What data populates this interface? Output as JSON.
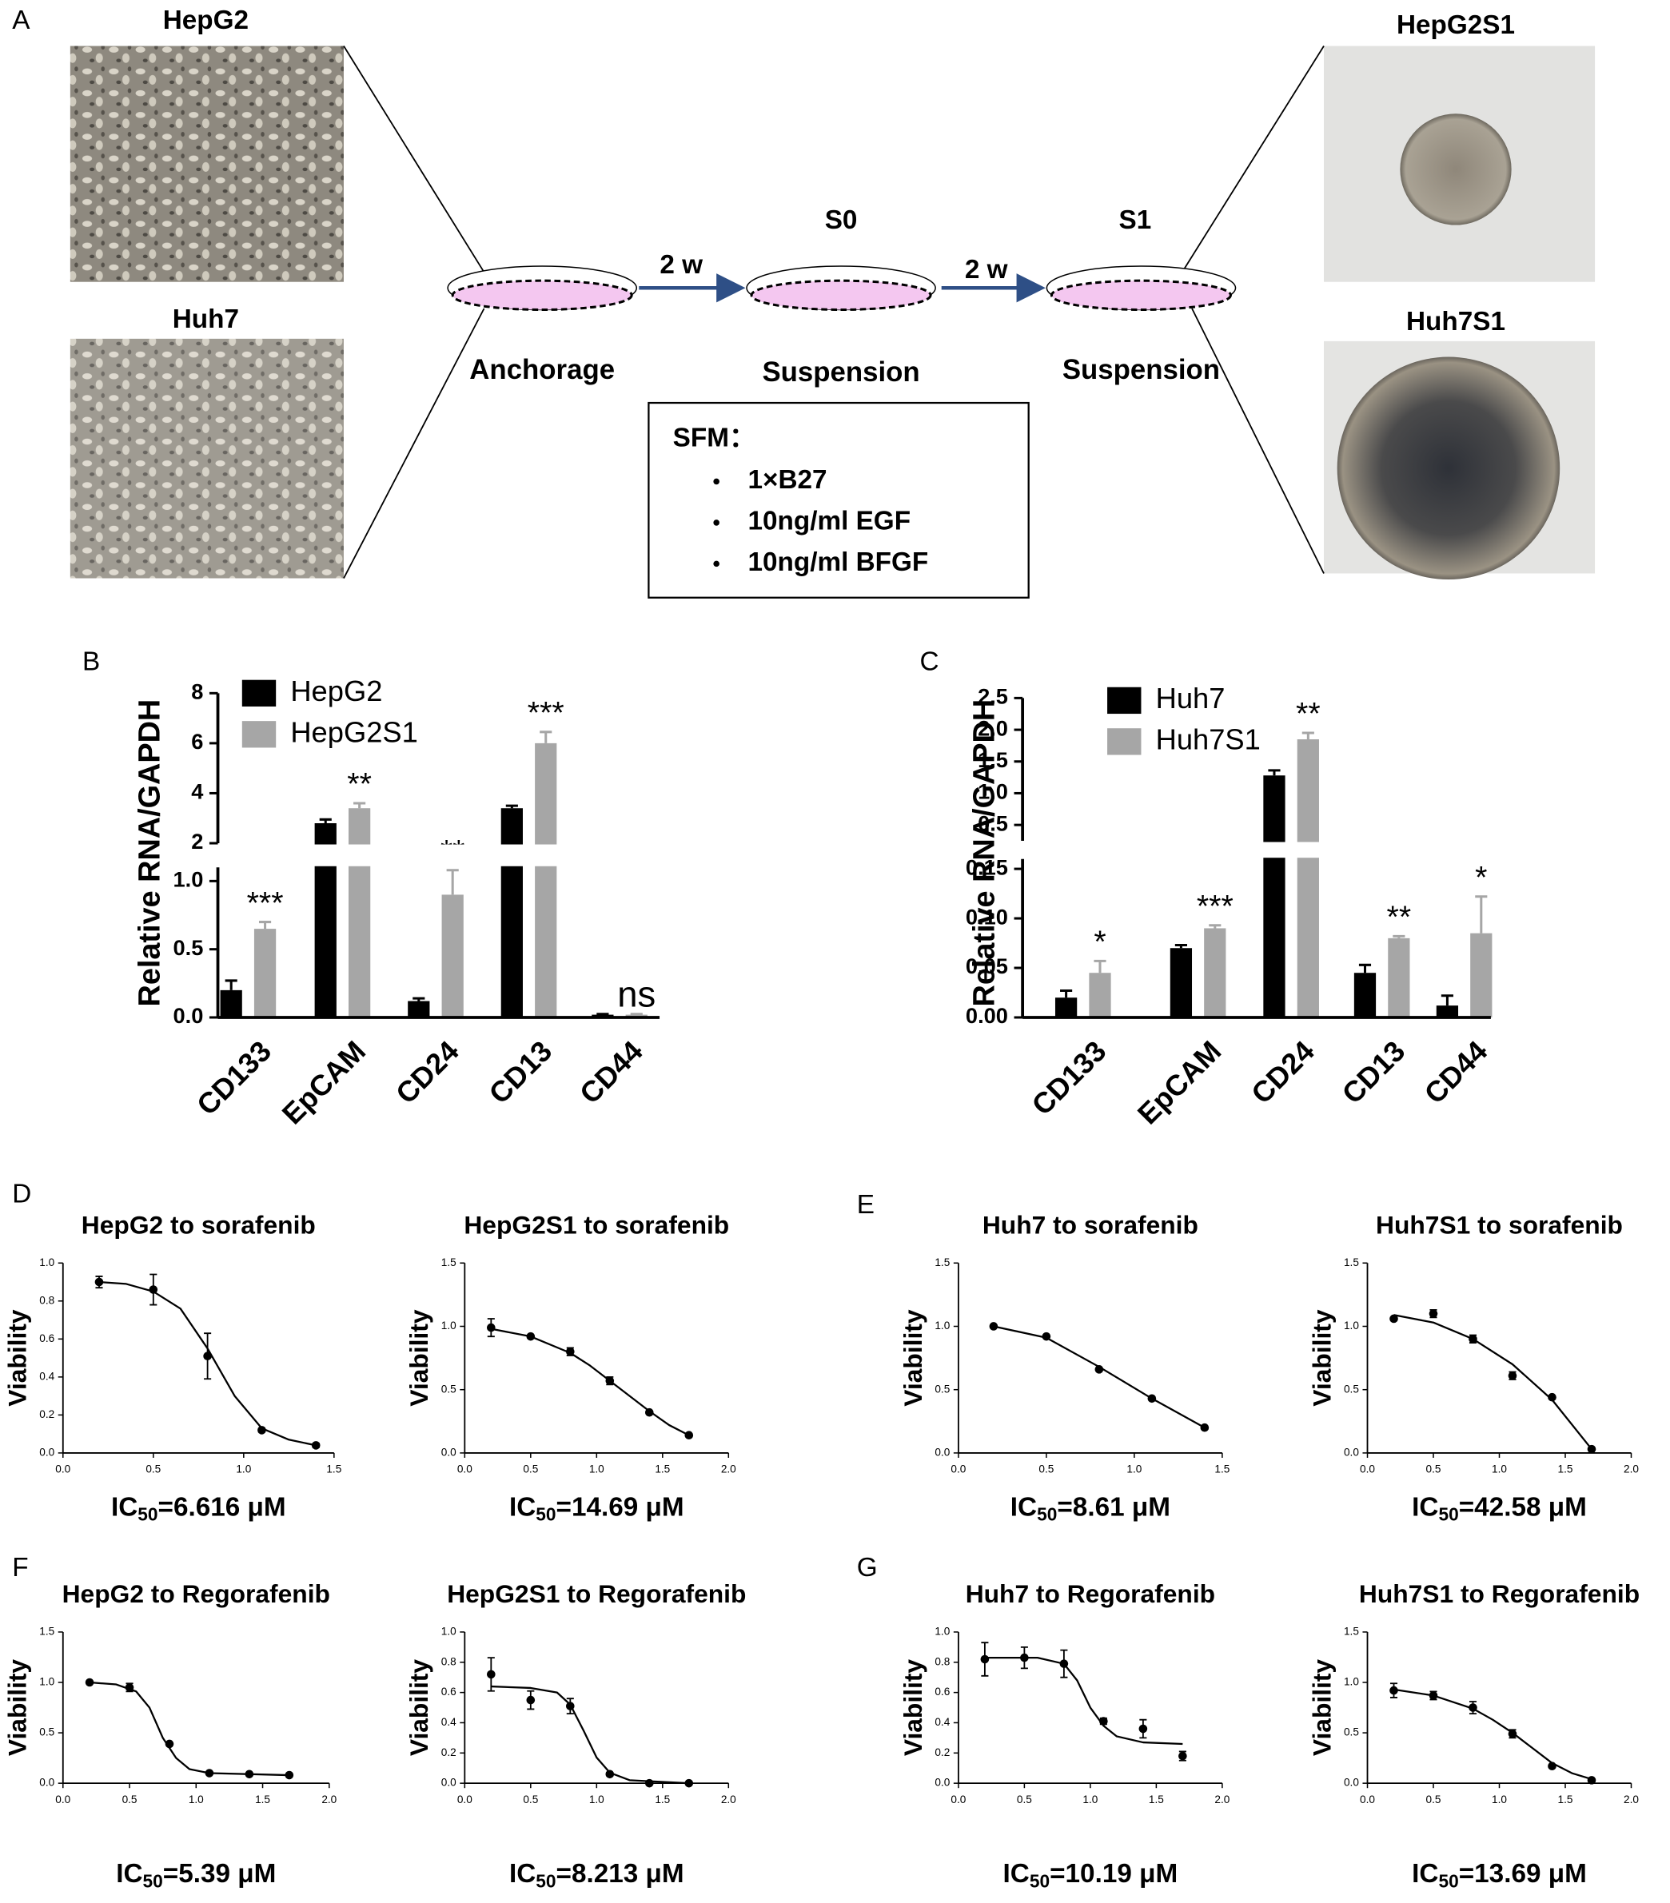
{
  "panel_labels": [
    "A",
    "B",
    "C",
    "D",
    "E",
    "F",
    "G"
  ],
  "diagram": {
    "image_labels": [
      "HepG2",
      "Huh7",
      "HepG2S1",
      "Huh7S1"
    ],
    "durations": [
      "2 w",
      "2 w"
    ],
    "stages": [
      "S0",
      "S1"
    ],
    "conditions": [
      "Anchorage",
      "Suspension",
      "Suspension"
    ],
    "medium": {
      "title": "SFM：",
      "items": [
        "1×B27",
        "10ng/ml EGF",
        "10ng/ml BFGF"
      ]
    }
  },
  "chart_data": [
    {
      "type": "bar",
      "ylabel": "Relative RNA/GAPDH",
      "categories": [
        "CD133",
        "EpCAM",
        "CD24",
        "CD13",
        "CD44"
      ],
      "series": [
        {
          "name": "HepG2",
          "color": "#000000",
          "values": [
            0.2,
            2.8,
            0.12,
            3.4,
            0.02
          ],
          "errors": [
            0.07,
            0.15,
            0.02,
            0.1,
            0.005
          ]
        },
        {
          "name": "HepG2S1",
          "color": "#a6a6a6",
          "values": [
            0.65,
            3.4,
            0.9,
            6,
            0.02
          ],
          "errors": [
            0.05,
            0.2,
            0.18,
            0.45,
            0.005
          ]
        }
      ],
      "annotations": [
        "***",
        "**",
        "**",
        "***",
        "ns"
      ],
      "ylim_lower": [
        0,
        1.1
      ],
      "ylim_upper": [
        2,
        8
      ],
      "yticks": [
        {
          "value": 0,
          "label": "0.0"
        },
        0.5,
        {
          "value": 1,
          "label": "1.0"
        },
        2,
        4,
        6,
        8
      ]
    },
    {
      "type": "bar",
      "ylabel": "Relative RNA/GAPDH",
      "categories": [
        "CD133",
        "EpCAM",
        "CD24",
        "CD13",
        "CD44"
      ],
      "series": [
        {
          "name": "Huh7",
          "color": "#000000",
          "values": [
            0.02,
            0.07,
            1.28,
            0.045,
            0.012
          ],
          "errors": [
            0.007,
            0.003,
            0.08,
            0.008,
            0.01
          ]
        },
        {
          "name": "Huh7S1",
          "color": "#a6a6a6",
          "values": [
            0.045,
            0.09,
            1.85,
            0.08,
            0.085
          ],
          "errors": [
            0.012,
            0.003,
            0.1,
            0.002,
            0.037
          ]
        }
      ],
      "annotations": [
        "*",
        "***",
        "**",
        "**",
        "*"
      ],
      "ylim_lower": [
        0,
        0.16
      ],
      "ylim_upper": [
        0.25,
        2.5
      ],
      "yticks": [
        {
          "value": 0,
          "label": "0.00"
        },
        0.05,
        {
          "value": 0.1,
          "label": "0.10"
        },
        0.15,
        0.5,
        {
          "value": 1,
          "label": "1.0"
        },
        1.5,
        {
          "value": 2,
          "label": "2.0"
        },
        2.5
      ]
    },
    {
      "type": "dose",
      "title": "HepG2 to sorafenib",
      "ylabel": "Viability",
      "xlabel": {
        "prefix": "IC",
        "sub": "50",
        "text": "=6.616 μM"
      },
      "x": [
        0.2,
        0.5,
        0.8,
        1.1,
        1.4
      ],
      "values": [
        0.9,
        0.86,
        0.51,
        0.12,
        0.04
      ],
      "errors": [
        0.03,
        0.08,
        0.12,
        0.01,
        0.01
      ],
      "fit": {
        "x": [
          0.2,
          0.35,
          0.5,
          0.65,
          0.8,
          0.95,
          1.1,
          1.25,
          1.4
        ],
        "y": [
          0.9,
          0.89,
          0.85,
          0.76,
          0.55,
          0.3,
          0.13,
          0.07,
          0.04
        ]
      },
      "xlim": [
        0,
        1.5
      ],
      "ylim": [
        0,
        1
      ],
      "xticks": [
        {
          "value": 0,
          "label": "0.0"
        },
        0.5,
        {
          "value": 1,
          "label": "1.0"
        },
        1.5
      ],
      "yticks": [
        {
          "value": 0,
          "label": "0.0"
        },
        0.2,
        0.4,
        0.6,
        0.8,
        {
          "value": 1,
          "label": "1.0"
        }
      ]
    },
    {
      "type": "dose",
      "title": "HepG2S1 to sorafenib",
      "ylabel": "Viability",
      "xlabel": {
        "prefix": "IC",
        "sub": "50",
        "text": "=14.69 μM"
      },
      "x": [
        0.2,
        0.5,
        0.8,
        1.1,
        1.4,
        1.7
      ],
      "values": [
        0.99,
        0.92,
        0.8,
        0.57,
        0.32,
        0.14
      ],
      "errors": [
        0.07,
        0.01,
        0.03,
        0.03,
        0.01,
        0.01
      ],
      "fit": {
        "x": [
          0.2,
          0.5,
          0.8,
          0.95,
          1.1,
          1.25,
          1.4,
          1.55,
          1.7
        ],
        "y": [
          0.98,
          0.92,
          0.79,
          0.69,
          0.57,
          0.45,
          0.33,
          0.22,
          0.14
        ]
      },
      "xlim": [
        0,
        2
      ],
      "ylim": [
        0,
        1.5
      ],
      "xticks": [
        {
          "value": 0,
          "label": "0.0"
        },
        0.5,
        {
          "value": 1,
          "label": "1.0"
        },
        1.5,
        {
          "value": 2,
          "label": "2.0"
        }
      ],
      "yticks": [
        {
          "value": 0,
          "label": "0.0"
        },
        0.5,
        {
          "value": 1,
          "label": "1.0"
        },
        1.5
      ]
    },
    {
      "type": "dose",
      "title": "Huh7 to sorafenib",
      "ylabel": "Viability",
      "xlabel": {
        "prefix": "IC",
        "sub": "50",
        "text": "=8.61 μM"
      },
      "x": [
        0.2,
        0.5,
        0.8,
        1.1,
        1.4
      ],
      "values": [
        1,
        0.92,
        0.66,
        0.43,
        0.2
      ],
      "errors": [
        0.01,
        0.01,
        0.01,
        0.01,
        0.01
      ],
      "fit": {
        "x": [
          0.2,
          0.5,
          0.8,
          1.1,
          1.4
        ],
        "y": [
          1,
          0.91,
          0.68,
          0.43,
          0.2
        ]
      },
      "xlim": [
        0,
        1.5
      ],
      "ylim": [
        0,
        1.5
      ],
      "xticks": [
        {
          "value": 0,
          "label": "0.0"
        },
        0.5,
        {
          "value": 1,
          "label": "1.0"
        },
        1.5
      ],
      "yticks": [
        {
          "value": 0,
          "label": "0.0"
        },
        0.5,
        {
          "value": 1,
          "label": "1.0"
        },
        1.5
      ]
    },
    {
      "type": "dose",
      "title": "Huh7S1 to sorafenib",
      "ylabel": "Viability",
      "xlabel": {
        "prefix": "IC",
        "sub": "50",
        "text": "=42.58 μM"
      },
      "x": [
        0.2,
        0.5,
        0.8,
        1.1,
        1.4,
        1.7
      ],
      "values": [
        1.06,
        1.1,
        0.9,
        0.61,
        0.44,
        0.03
      ],
      "errors": [
        0.01,
        0.03,
        0.03,
        0.03,
        0.01,
        0.01
      ],
      "fit": {
        "x": [
          0.2,
          0.5,
          0.8,
          1.1,
          1.4,
          1.7
        ],
        "y": [
          1.09,
          1.03,
          0.9,
          0.7,
          0.42,
          0.03
        ]
      },
      "xlim": [
        0,
        2
      ],
      "ylim": [
        0,
        1.5
      ],
      "xticks": [
        {
          "value": 0,
          "label": "0.0"
        },
        0.5,
        {
          "value": 1,
          "label": "1.0"
        },
        1.5,
        {
          "value": 2,
          "label": "2.0"
        }
      ],
      "yticks": [
        {
          "value": 0,
          "label": "0.0"
        },
        0.5,
        {
          "value": 1,
          "label": "1.0"
        },
        1.5
      ]
    },
    {
      "type": "dose",
      "title": "HepG2 to Regorafenib",
      "ylabel": "Viability",
      "xlabel": {
        "prefix": "IC",
        "sub": "50",
        "text": "=5.39 μM"
      },
      "x": [
        0.2,
        0.5,
        0.8,
        1.1,
        1.4,
        1.7
      ],
      "values": [
        1,
        0.95,
        0.39,
        0.1,
        0.09,
        0.08
      ],
      "errors": [
        0.01,
        0.04,
        0.01,
        0.01,
        0.01,
        0.01
      ],
      "fit": {
        "x": [
          0.2,
          0.4,
          0.55,
          0.65,
          0.75,
          0.85,
          0.95,
          1.1,
          1.7
        ],
        "y": [
          1,
          0.98,
          0.91,
          0.75,
          0.45,
          0.25,
          0.14,
          0.1,
          0.08
        ]
      },
      "xlim": [
        0,
        2
      ],
      "ylim": [
        0,
        1.5
      ],
      "xticks": [
        {
          "value": 0,
          "label": "0.0"
        },
        0.5,
        {
          "value": 1,
          "label": "1.0"
        },
        1.5,
        {
          "value": 2,
          "label": "2.0"
        }
      ],
      "yticks": [
        {
          "value": 0,
          "label": "0.0"
        },
        0.5,
        {
          "value": 1,
          "label": "1.0"
        },
        1.5
      ]
    },
    {
      "type": "dose",
      "title": "HepG2S1 to Regorafenib",
      "ylabel": "Viability",
      "xlabel": {
        "prefix": "IC",
        "sub": "50",
        "text": "=8.213 μM"
      },
      "x": [
        0.2,
        0.5,
        0.8,
        1.1,
        1.4,
        1.7
      ],
      "values": [
        0.72,
        0.55,
        0.51,
        0.06,
        0,
        0
      ],
      "errors": [
        0.11,
        0.06,
        0.05,
        0.01,
        0.005,
        0.005
      ],
      "fit": {
        "x": [
          0.2,
          0.5,
          0.7,
          0.8,
          0.9,
          1,
          1.1,
          1.25,
          1.7
        ],
        "y": [
          0.64,
          0.63,
          0.6,
          0.52,
          0.35,
          0.17,
          0.07,
          0.02,
          0
        ]
      },
      "xlim": [
        0,
        2
      ],
      "ylim": [
        0,
        1
      ],
      "xticks": [
        {
          "value": 0,
          "label": "0.0"
        },
        0.5,
        {
          "value": 1,
          "label": "1.0"
        },
        1.5,
        {
          "value": 2,
          "label": "2.0"
        }
      ],
      "yticks": [
        {
          "value": 0,
          "label": "0.0"
        },
        0.2,
        0.4,
        0.6,
        0.8,
        {
          "value": 1,
          "label": "1.0"
        }
      ]
    },
    {
      "type": "dose",
      "title": "Huh7 to Regorafenib",
      "ylabel": "Viability",
      "xlabel": {
        "prefix": "IC",
        "sub": "50",
        "text": "=10.19 μM"
      },
      "x": [
        0.2,
        0.5,
        0.8,
        1.1,
        1.4,
        1.7
      ],
      "values": [
        0.82,
        0.83,
        0.79,
        0.41,
        0.36,
        0.18
      ],
      "errors": [
        0.11,
        0.07,
        0.09,
        0.02,
        0.06,
        0.03
      ],
      "fit": {
        "x": [
          0.2,
          0.6,
          0.8,
          0.9,
          1,
          1.1,
          1.2,
          1.4,
          1.7
        ],
        "y": [
          0.83,
          0.83,
          0.79,
          0.68,
          0.5,
          0.38,
          0.31,
          0.27,
          0.26
        ]
      },
      "xlim": [
        0,
        2
      ],
      "ylim": [
        0,
        1
      ],
      "xticks": [
        {
          "value": 0,
          "label": "0.0"
        },
        0.5,
        {
          "value": 1,
          "label": "1.0"
        },
        1.5,
        {
          "value": 2,
          "label": "2.0"
        }
      ],
      "yticks": [
        {
          "value": 0,
          "label": "0.0"
        },
        0.2,
        0.4,
        0.6,
        0.8,
        {
          "value": 1,
          "label": "1.0"
        }
      ]
    },
    {
      "type": "dose",
      "title": "Huh7S1 to Regorafenib",
      "ylabel": "Viability",
      "xlabel": {
        "prefix": "IC",
        "sub": "50",
        "text": "=13.69 μM"
      },
      "x": [
        0.2,
        0.5,
        0.8,
        1.1,
        1.4,
        1.7
      ],
      "values": [
        0.92,
        0.87,
        0.75,
        0.49,
        0.17,
        0.03
      ],
      "errors": [
        0.07,
        0.04,
        0.06,
        0.04,
        0.01,
        0.01
      ],
      "fit": {
        "x": [
          0.2,
          0.5,
          0.8,
          0.95,
          1.1,
          1.25,
          1.4,
          1.55,
          1.7
        ],
        "y": [
          0.93,
          0.87,
          0.74,
          0.63,
          0.5,
          0.35,
          0.2,
          0.1,
          0.04
        ]
      },
      "xlim": [
        0,
        2
      ],
      "ylim": [
        0,
        1.5
      ],
      "xticks": [
        {
          "value": 0,
          "label": "0.0"
        },
        0.5,
        {
          "value": 1,
          "label": "1.0"
        },
        1.5,
        {
          "value": 2,
          "label": "2.0"
        }
      ],
      "yticks": [
        {
          "value": 0,
          "label": "0.0"
        },
        0.5,
        {
          "value": 1,
          "label": "1.0"
        },
        1.5
      ]
    }
  ]
}
